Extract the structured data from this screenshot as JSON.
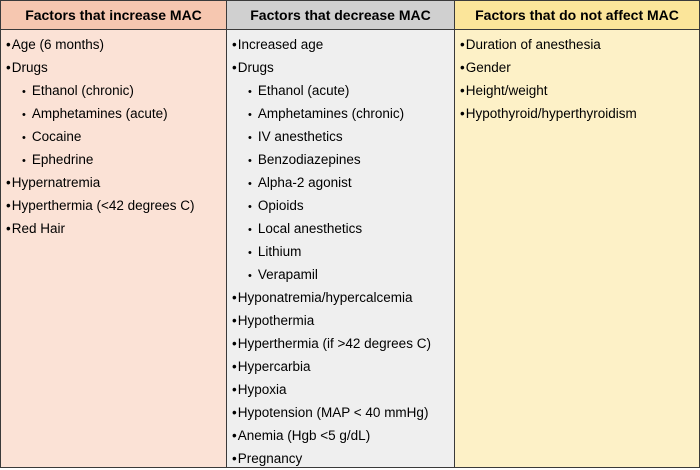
{
  "table": {
    "headers": [
      "Factors that increase MAC",
      "Factors that decrease MAC",
      "Factors that do not affect MAC"
    ],
    "columns": [
      [
        {
          "text": "Age (6 months)",
          "level": 1
        },
        {
          "text": "Drugs",
          "level": 1
        },
        {
          "text": "Ethanol (chronic)",
          "level": 2
        },
        {
          "text": "Amphetamines (acute)",
          "level": 2
        },
        {
          "text": "Cocaine",
          "level": 2
        },
        {
          "text": "Ephedrine",
          "level": 2
        },
        {
          "text": "Hypernatremia",
          "level": 1
        },
        {
          "text": "Hyperthermia (<42 degrees C)",
          "level": 1
        },
        {
          "text": "Red Hair",
          "level": 1
        }
      ],
      [
        {
          "text": "Increased age",
          "level": 1
        },
        {
          "text": "Drugs",
          "level": 1
        },
        {
          "text": "Ethanol (acute)",
          "level": 2
        },
        {
          "text": "Amphetamines (chronic)",
          "level": 2
        },
        {
          "text": "IV anesthetics",
          "level": 2
        },
        {
          "text": "Benzodiazepines",
          "level": 2
        },
        {
          "text": "Alpha-2 agonist",
          "level": 2
        },
        {
          "text": "Opioids",
          "level": 2
        },
        {
          "text": "Local anesthetics",
          "level": 2
        },
        {
          "text": "Lithium",
          "level": 2
        },
        {
          "text": "Verapamil",
          "level": 2
        },
        {
          "text": "Hyponatremia/hypercalcemia",
          "level": 1
        },
        {
          "text": "Hypothermia",
          "level": 1
        },
        {
          "text": "Hyperthermia (if >42 degrees C)",
          "level": 1
        },
        {
          "text": "Hypercarbia",
          "level": 1
        },
        {
          "text": "Hypoxia",
          "level": 1
        },
        {
          "text": "Hypotension (MAP < 40 mmHg)",
          "level": 1
        },
        {
          "text": "Anemia (Hgb <5 g/dL)",
          "level": 1
        },
        {
          "text": "Pregnancy",
          "level": 1
        }
      ],
      [
        {
          "text": "Duration of anesthesia",
          "level": 1
        },
        {
          "text": "Gender",
          "level": 1
        },
        {
          "text": "Height/weight",
          "level": 1
        },
        {
          "text": "Hypothyroid/hyperthyroidism",
          "level": 1
        }
      ]
    ],
    "header_colors": [
      "#f6c7b0",
      "#d0d0d0",
      "#fbe59a"
    ],
    "body_colors": [
      "#fbe2d6",
      "#efefef",
      "#fdf1c7"
    ]
  }
}
